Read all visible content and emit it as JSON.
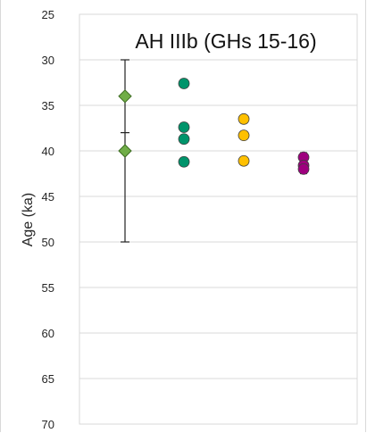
{
  "chart_data": {
    "type": "scatter",
    "title": "AH IIIb (GHs 15-16)",
    "ylabel": "Age (ka)",
    "xlabel": "",
    "ylim": [
      25,
      70
    ],
    "y_inverted": true,
    "yticks": [
      25,
      30,
      35,
      40,
      45,
      50,
      55,
      60,
      65,
      70
    ],
    "grid": "horizontal",
    "legend": "none",
    "series": [
      {
        "marker": "diamond",
        "color": "#70ad47",
        "x": 1,
        "values": [
          34.0,
          40.0
        ],
        "error_range": [
          30.0,
          50.0
        ],
        "inner_error_caps": [
          38.0
        ]
      },
      {
        "marker": "circle",
        "color": "#00946b",
        "x": 2,
        "values": [
          32.6,
          37.4,
          38.7,
          41.2
        ]
      },
      {
        "marker": "circle",
        "color": "#ffc000",
        "x": 3,
        "values": [
          36.5,
          38.3,
          41.1
        ]
      },
      {
        "marker": "circle",
        "color": "#9e007e",
        "x": 4,
        "values": [
          40.7,
          41.6,
          42.0
        ],
        "error_range": [
          40.2,
          42.5
        ]
      }
    ]
  }
}
